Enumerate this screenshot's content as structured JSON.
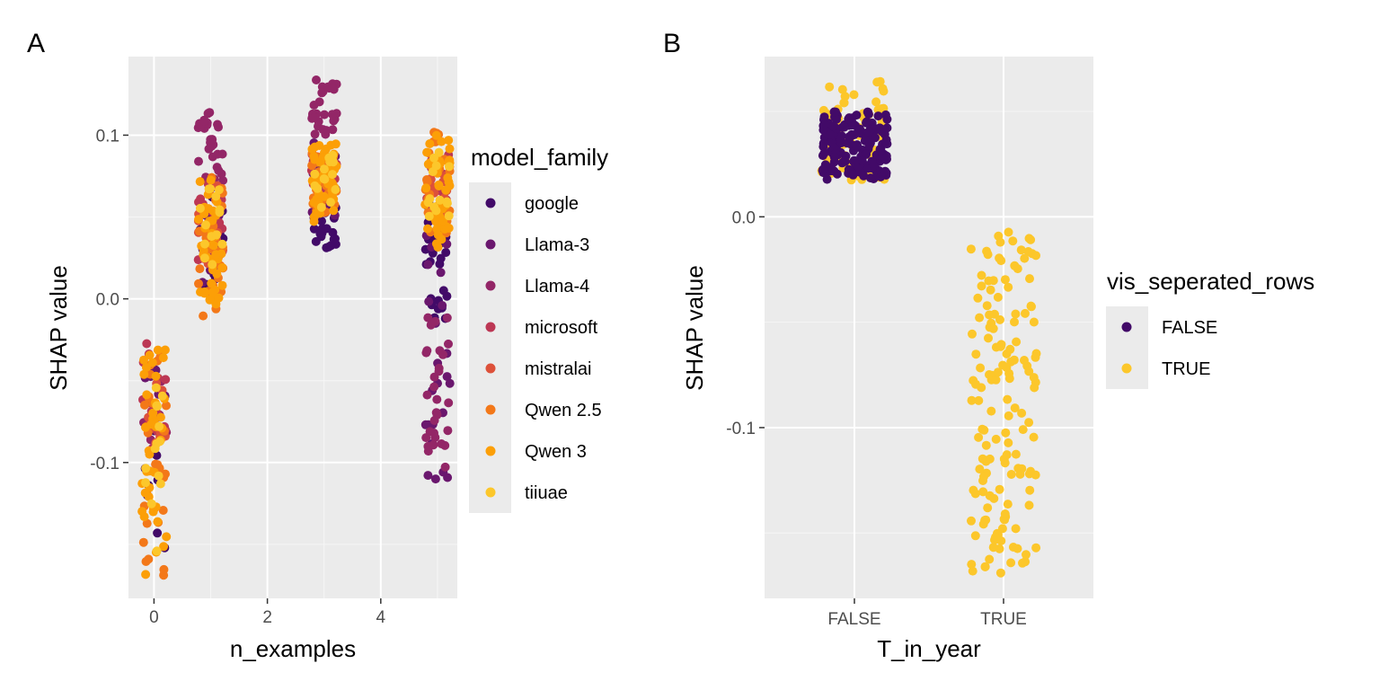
{
  "chart_data": [
    {
      "panel_label": "A",
      "type": "scatter",
      "xlabel": "n_examples",
      "ylabel": "SHAP value",
      "x_ticks": [
        0,
        2,
        4
      ],
      "y_ticks": [
        -0.1,
        0.0,
        0.1
      ],
      "y_tick_labels": [
        "-0.1",
        "0.0",
        "0.1"
      ],
      "xlim": [
        -0.45,
        5.35
      ],
      "ylim": [
        -0.183,
        0.148
      ],
      "jitter_x": 0.22,
      "legend": {
        "title": "model_family",
        "placement": "right"
      },
      "series": [
        {
          "name": "google",
          "color": "#420A68",
          "x_values": [
            0,
            1,
            3,
            5
          ],
          "groups": [
            {
              "x": 0,
              "n": 10,
              "y_min": -0.17,
              "y_max": -0.03
            },
            {
              "x": 1,
              "n": 18,
              "y_min": 0.0,
              "y_max": 0.07
            },
            {
              "x": 3,
              "n": 24,
              "y_min": 0.031,
              "y_max": 0.07
            },
            {
              "x": 5,
              "n": 40,
              "y_min": -0.015,
              "y_max": 0.06
            }
          ]
        },
        {
          "name": "Llama-3",
          "color": "#6A176E",
          "x_values": [
            0,
            1,
            3,
            5
          ],
          "groups": [
            {
              "x": 0,
              "n": 8,
              "y_min": -0.09,
              "y_max": -0.04
            },
            {
              "x": 1,
              "n": 14,
              "y_min": 0.01,
              "y_max": 0.06
            },
            {
              "x": 3,
              "n": 14,
              "y_min": 0.05,
              "y_max": 0.1
            },
            {
              "x": 5,
              "n": 24,
              "y_min": -0.112,
              "y_max": 0.06
            }
          ]
        },
        {
          "name": "Llama-4",
          "color": "#932667",
          "x_values": [
            0,
            1,
            3,
            5
          ],
          "groups": [
            {
              "x": 0,
              "n": 8,
              "y_min": -0.09,
              "y_max": -0.05
            },
            {
              "x": 1,
              "n": 30,
              "y_min": 0.07,
              "y_max": 0.118
            },
            {
              "x": 3,
              "n": 30,
              "y_min": 0.1,
              "y_max": 0.134
            },
            {
              "x": 5,
              "n": 30,
              "y_min": -0.103,
              "y_max": -0.01
            }
          ]
        },
        {
          "name": "microsoft",
          "color": "#BC3754",
          "x_values": [
            0,
            1,
            3,
            5
          ],
          "groups": [
            {
              "x": 0,
              "n": 14,
              "y_min": -0.1,
              "y_max": -0.025
            },
            {
              "x": 1,
              "n": 20,
              "y_min": 0.02,
              "y_max": 0.08
            },
            {
              "x": 3,
              "n": 12,
              "y_min": 0.06,
              "y_max": 0.09
            },
            {
              "x": 5,
              "n": 12,
              "y_min": 0.05,
              "y_max": 0.09
            }
          ]
        },
        {
          "name": "mistralai",
          "color": "#DD513A",
          "x_values": [
            0,
            1,
            3,
            5
          ],
          "groups": [
            {
              "x": 0,
              "n": 12,
              "y_min": -0.09,
              "y_max": -0.05
            },
            {
              "x": 1,
              "n": 20,
              "y_min": 0.02,
              "y_max": 0.07
            },
            {
              "x": 3,
              "n": 10,
              "y_min": 0.06,
              "y_max": 0.085
            },
            {
              "x": 5,
              "n": 10,
              "y_min": 0.05,
              "y_max": 0.085
            }
          ]
        },
        {
          "name": "Qwen 2.5",
          "color": "#F37819",
          "x_values": [
            0,
            1,
            3,
            5
          ],
          "groups": [
            {
              "x": 0,
              "n": 30,
              "y_min": -0.17,
              "y_max": -0.03
            },
            {
              "x": 1,
              "n": 30,
              "y_min": -0.013,
              "y_max": 0.08
            },
            {
              "x": 3,
              "n": 30,
              "y_min": 0.05,
              "y_max": 0.09
            },
            {
              "x": 5,
              "n": 30,
              "y_min": 0.04,
              "y_max": 0.102
            }
          ]
        },
        {
          "name": "Qwen 3",
          "color": "#FC9F07",
          "x_values": [
            0,
            1,
            3,
            5
          ],
          "groups": [
            {
              "x": 0,
              "n": 40,
              "y_min": -0.17,
              "y_max": -0.03
            },
            {
              "x": 1,
              "n": 40,
              "y_min": -0.005,
              "y_max": 0.075
            },
            {
              "x": 3,
              "n": 45,
              "y_min": 0.045,
              "y_max": 0.095
            },
            {
              "x": 5,
              "n": 45,
              "y_min": 0.03,
              "y_max": 0.1
            }
          ]
        },
        {
          "name": "tiiuae",
          "color": "#FCC72B",
          "x_values": [
            0,
            1,
            3,
            5
          ],
          "groups": [
            {
              "x": 0,
              "n": 14,
              "y_min": -0.16,
              "y_max": -0.04
            },
            {
              "x": 1,
              "n": 14,
              "y_min": 0.02,
              "y_max": 0.07
            },
            {
              "x": 3,
              "n": 14,
              "y_min": 0.055,
              "y_max": 0.09
            },
            {
              "x": 5,
              "n": 14,
              "y_min": 0.05,
              "y_max": 0.09
            }
          ]
        }
      ]
    },
    {
      "panel_label": "B",
      "type": "scatter",
      "xlabel": "T_in_year",
      "ylabel": "SHAP value",
      "categories": [
        "FALSE",
        "TRUE"
      ],
      "y_ticks": [
        -0.1,
        0.0
      ],
      "y_tick_labels": [
        "-0.1",
        "0.0"
      ],
      "ylim": [
        -0.181,
        0.076
      ],
      "jitter_x": 0.22,
      "legend": {
        "title": "vis_seperated_rows",
        "placement": "right"
      },
      "series": [
        {
          "name": "FALSE",
          "color": "#420A68",
          "groups": [
            {
              "category": "FALSE",
              "n": 170,
              "y_min": 0.017,
              "y_max": 0.05
            }
          ]
        },
        {
          "name": "TRUE",
          "color": "#FCC72B",
          "groups": [
            {
              "category": "FALSE",
              "n": 90,
              "y_min": 0.017,
              "y_max": 0.065
            },
            {
              "category": "TRUE",
              "n": 150,
              "y_min": -0.169,
              "y_max": -0.007
            }
          ]
        }
      ]
    }
  ]
}
